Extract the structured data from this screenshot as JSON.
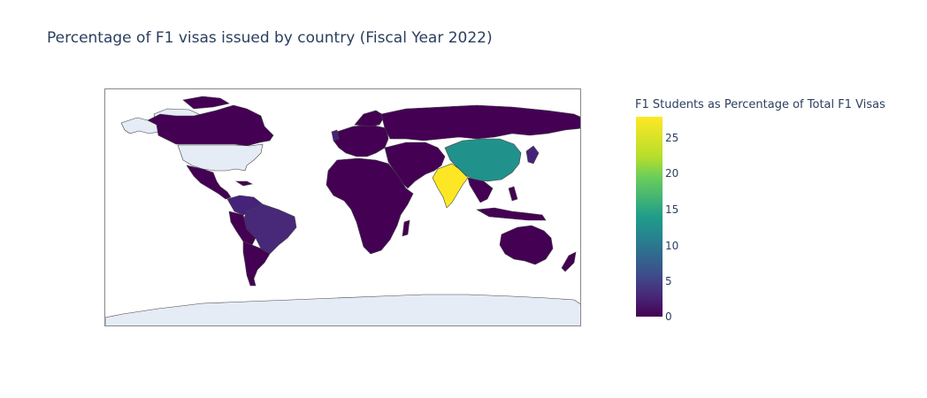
{
  "title": "Percentage of F1 visas issued by country (Fiscal Year 2022)",
  "colorbar": {
    "title": "F1 Students as Percentage of Total F1 Visas",
    "ticks": [
      "0",
      "5",
      "10",
      "15",
      "20",
      "25"
    ],
    "range": [
      0,
      28
    ],
    "colorscale": "Viridis"
  },
  "map": {
    "projection": "equirectangular",
    "no_data_color": "#e5ecf6",
    "border_color": "#444444",
    "highlighted": {
      "India": {
        "value": 28,
        "color": "#fde725"
      },
      "China": {
        "value": 16,
        "color": "#21918c"
      },
      "Brazil": {
        "value": 2,
        "color": "#482878"
      },
      "Rest of world": {
        "value": 0.5,
        "color": "#440154"
      }
    }
  }
}
